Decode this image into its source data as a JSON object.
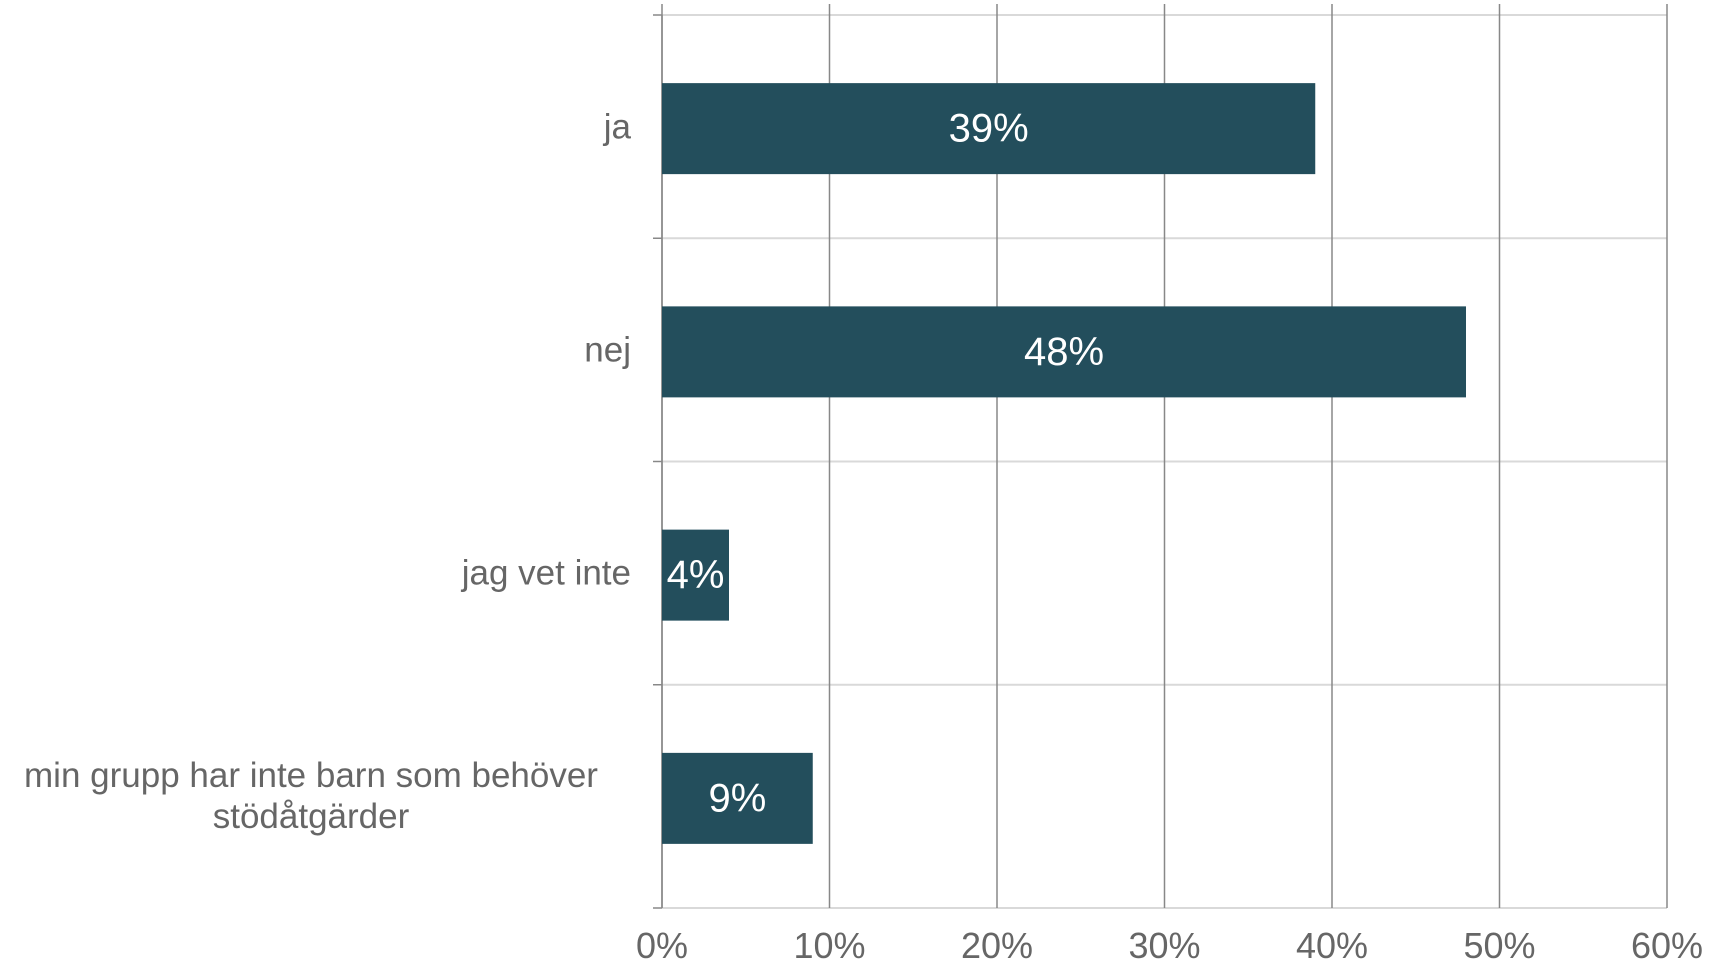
{
  "chart_data": {
    "type": "bar",
    "orientation": "horizontal",
    "categories": [
      "ja",
      "nej",
      "jag vet inte",
      "min grupp har inte barn som behöver stödåtgärder"
    ],
    "values": [
      39,
      48,
      4,
      9
    ],
    "data_labels": [
      "39%",
      "48%",
      "4%",
      "9%"
    ],
    "x_ticks": [
      "0%",
      "10%",
      "20%",
      "30%",
      "40%",
      "50%",
      "60%"
    ],
    "xlim": [
      0,
      60
    ],
    "grid": true,
    "legend": "none",
    "bar_color": "#234e5c",
    "grid_color": "#888888",
    "separator_color": "#d9d9d9",
    "label_color": "#666666",
    "data_label_color": "#ffffff",
    "title": "",
    "xlabel": "",
    "ylabel": ""
  }
}
